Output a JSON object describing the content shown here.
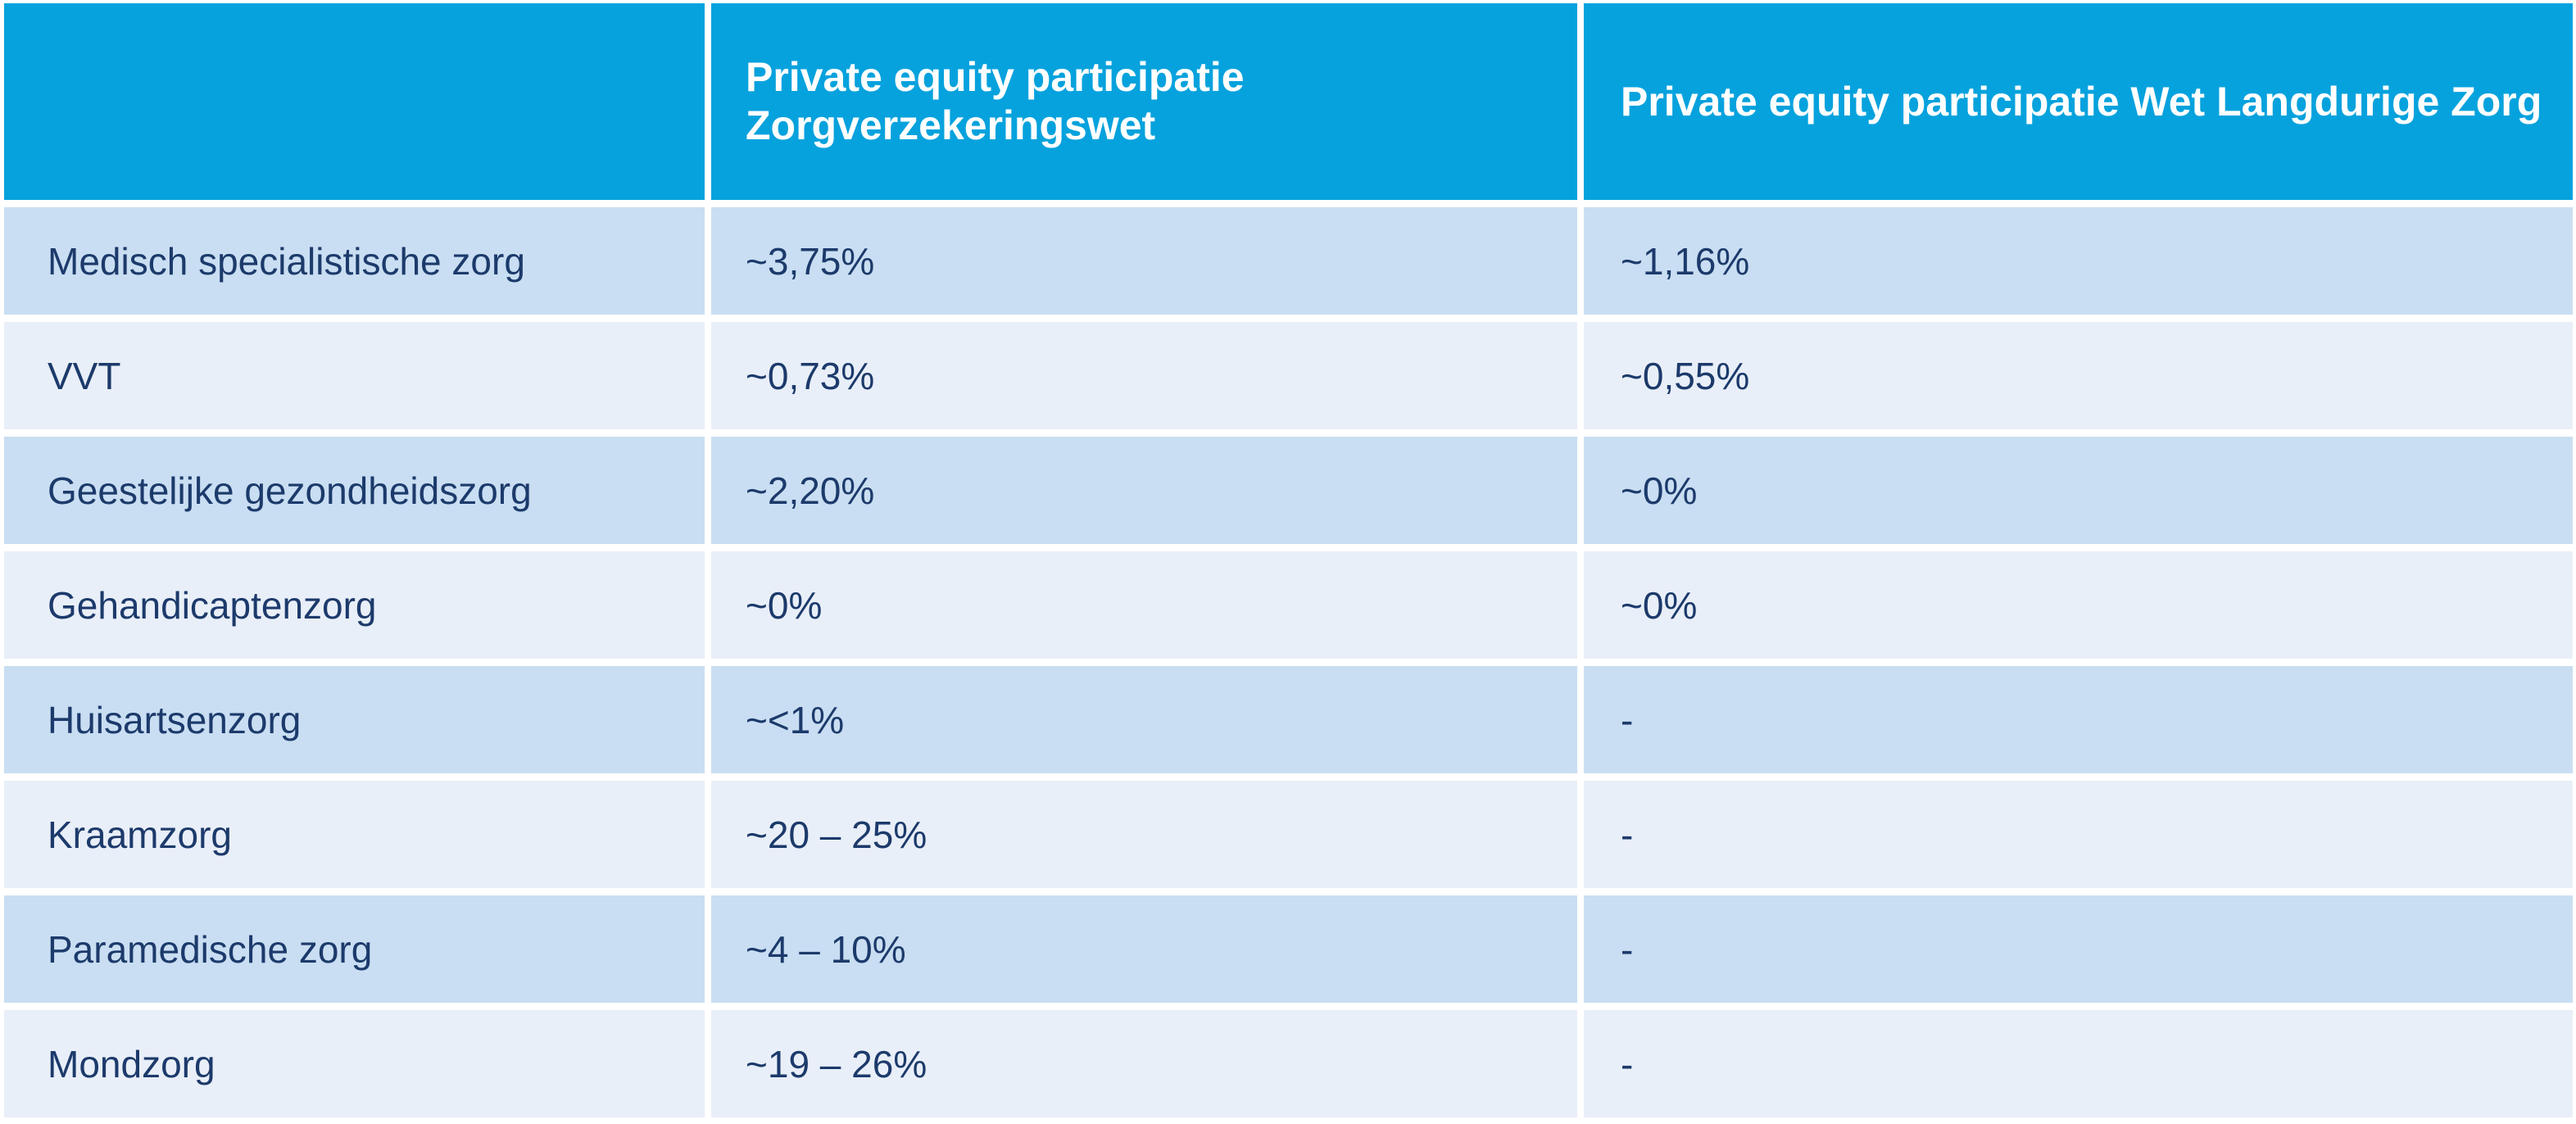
{
  "table": {
    "header": {
      "sector": "",
      "zvw": "Private equity participatie\nZorgverzekeringswet",
      "wlz": "Private equity participatie Wet Langdurige Zorg"
    },
    "rows": [
      {
        "label": "Medisch specialistische zorg",
        "zvw": "~3,75%",
        "wlz": "~1,16%"
      },
      {
        "label": "VVT",
        "zvw": "~0,73%",
        "wlz": "~0,55%"
      },
      {
        "label": "Geestelijke gezondheidszorg",
        "zvw": "~2,20%",
        "wlz": "~0%"
      },
      {
        "label": "Gehandicaptenzorg",
        "zvw": "~0%",
        "wlz": "~0%"
      },
      {
        "label": "Huisartsenzorg",
        "zvw": "~<1%",
        "wlz": "-"
      },
      {
        "label": "Kraamzorg",
        "zvw": "~20 – 25%",
        "wlz": "-"
      },
      {
        "label": "Paramedische zorg",
        "zvw": "~4 – 10%",
        "wlz": "-"
      },
      {
        "label": "Mondzorg",
        "zvw": "~19 – 26%",
        "wlz": "-"
      }
    ],
    "colors": {
      "header_bg": "#06a2dd",
      "header_text": "#ffffff",
      "row_dark_bg": "#c9def2",
      "row_light_bg": "#e9eff8",
      "body_text": "#1c3a6b",
      "divider": "#ffffff"
    }
  },
  "chart_data": {
    "type": "table",
    "columns": [
      "",
      "Private equity participatie Zorgverzekeringswet",
      "Private equity participatie Wet Langdurige Zorg"
    ],
    "rows": [
      [
        "Medisch specialistische zorg",
        "~3,75%",
        "~1,16%"
      ],
      [
        "VVT",
        "~0,73%",
        "~0,55%"
      ],
      [
        "Geestelijke gezondheidszorg",
        "~2,20%",
        "~0%"
      ],
      [
        "Gehandicaptenzorg",
        "~0%",
        "~0%"
      ],
      [
        "Huisartsenzorg",
        "~<1%",
        "-"
      ],
      [
        "Kraamzorg",
        "~20 – 25%",
        "-"
      ],
      [
        "Paramedische zorg",
        "~4 – 10%",
        "-"
      ],
      [
        "Mondzorg",
        "~19 – 26%",
        "-"
      ]
    ]
  }
}
